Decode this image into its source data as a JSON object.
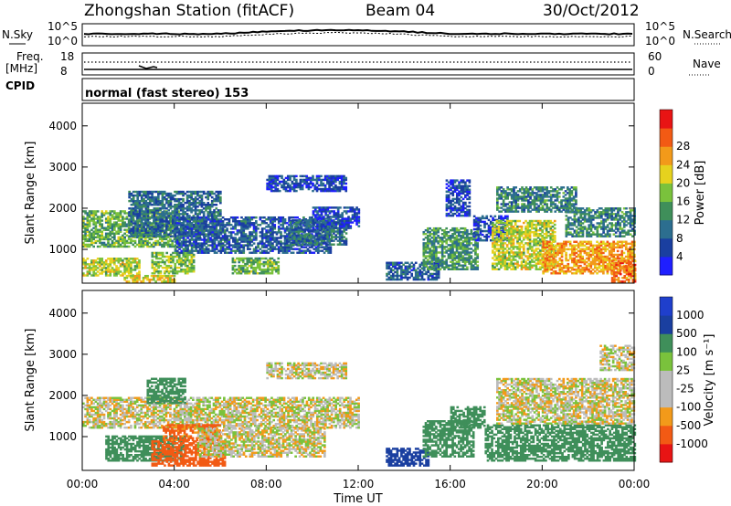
{
  "header": {
    "station": "Zhongshan Station (fitACF)",
    "beam": "Beam 04",
    "date": "30/Oct/2012",
    "mode": "normal (fast stereo) 153"
  },
  "status": {
    "nsky_label": "N.Sky",
    "nsearch_label": "N.Search",
    "noise_ticks": [
      "10^5",
      "10^0"
    ],
    "freq_label_1": "Freq.",
    "freq_label_2": "[MHz]",
    "freq_ticks": [
      "18",
      "8"
    ],
    "nave_label": "Nave",
    "nave_ticks": [
      "60",
      "0"
    ],
    "cpid_label": "CPID"
  },
  "colors": {
    "power": [
      "#1f1fff",
      "#1a3fa0",
      "#2c6e8f",
      "#3f8f5a",
      "#7ac23c",
      "#e6d21e",
      "#f29a1a",
      "#f25a14",
      "#e81414"
    ],
    "velocity": [
      "#e81414",
      "#f25a14",
      "#f29a1a",
      "#bcbcbc",
      "#bcbcbc",
      "#7ac23c",
      "#3f8f5a",
      "#1a3fa0",
      "#1f3fcc"
    ]
  },
  "chart_data": [
    {
      "type": "heatmap",
      "quantity": "Power",
      "xlabel": "Time UT",
      "ylabel": "Slant Range [km]",
      "x_ticks": [
        "00:00",
        "04:00",
        "08:00",
        "12:00",
        "16:00",
        "20:00",
        "00:00"
      ],
      "xlim_hours": [
        0,
        24
      ],
      "y_ticks": [
        1000,
        2000,
        3000,
        4000
      ],
      "ylim_km": [
        180,
        4550
      ],
      "colorbar_label": "Power [dB]",
      "colorbar_ticks": [
        "4",
        "8",
        "12",
        "16",
        "20",
        "24",
        "28"
      ],
      "colorbar_range": [
        0,
        32
      ],
      "echo_regions": [
        {
          "t": [
            0.0,
            4.2
          ],
          "r": [
            1050,
            1950
          ],
          "level": 16
        },
        {
          "t": [
            0.0,
            2.5
          ],
          "r": [
            350,
            800
          ],
          "level": 20
        },
        {
          "t": [
            1.8,
            4.0
          ],
          "r": [
            200,
            380
          ],
          "level": 22
        },
        {
          "t": [
            2.0,
            6.0
          ],
          "r": [
            1300,
            2400
          ],
          "level": 10
        },
        {
          "t": [
            3.0,
            4.8
          ],
          "r": [
            400,
            900
          ],
          "level": 18
        },
        {
          "t": [
            4.0,
            10.8
          ],
          "r": [
            900,
            1800
          ],
          "level": 8
        },
        {
          "t": [
            6.5,
            8.5
          ],
          "r": [
            400,
            800
          ],
          "level": 16
        },
        {
          "t": [
            8.0,
            11.5
          ],
          "r": [
            2400,
            2800
          ],
          "level": 6
        },
        {
          "t": [
            9.0,
            11.5
          ],
          "r": [
            1100,
            1700
          ],
          "level": 10
        },
        {
          "t": [
            10.0,
            12.0
          ],
          "r": [
            1500,
            2000
          ],
          "level": 6
        },
        {
          "t": [
            13.2,
            15.5
          ],
          "r": [
            250,
            700
          ],
          "level": 8
        },
        {
          "t": [
            14.8,
            17.2
          ],
          "r": [
            500,
            1500
          ],
          "level": 14
        },
        {
          "t": [
            15.8,
            16.8
          ],
          "r": [
            1800,
            2700
          ],
          "level": 6
        },
        {
          "t": [
            17.0,
            18.5
          ],
          "r": [
            1200,
            1800
          ],
          "level": 6
        },
        {
          "t": [
            17.8,
            20.5
          ],
          "r": [
            500,
            1700
          ],
          "level": 20
        },
        {
          "t": [
            18.0,
            21.5
          ],
          "r": [
            1900,
            2500
          ],
          "level": 12
        },
        {
          "t": [
            20.0,
            24.0
          ],
          "r": [
            400,
            1200
          ],
          "level": 26
        },
        {
          "t": [
            21.0,
            24.0
          ],
          "r": [
            1300,
            2000
          ],
          "level": 12
        },
        {
          "t": [
            23.0,
            24.0
          ],
          "r": [
            200,
            700
          ],
          "level": 28
        }
      ]
    },
    {
      "type": "heatmap",
      "quantity": "Velocity",
      "xlabel": "Time UT",
      "ylabel": "Slant Range [km]",
      "x_ticks": [
        "00:00",
        "04:00",
        "08:00",
        "12:00",
        "16:00",
        "20:00",
        "00:00"
      ],
      "xlim_hours": [
        0,
        24
      ],
      "y_ticks": [
        1000,
        2000,
        3000,
        4000
      ],
      "ylim_km": [
        180,
        4550
      ],
      "colorbar_label": "Velocity [m s⁻¹]",
      "colorbar_ticks": [
        "1000",
        "500",
        "100",
        "25",
        "-25",
        "-100",
        "-500",
        "-1000"
      ],
      "colorbar_range": [
        -1000,
        1000
      ],
      "echo_regions": [
        {
          "t": [
            0.0,
            12.0
          ],
          "r": [
            1200,
            1950
          ],
          "v": 0
        },
        {
          "t": [
            1.0,
            4.5
          ],
          "r": [
            400,
            1000
          ],
          "v": 200
        },
        {
          "t": [
            2.8,
            4.5
          ],
          "r": [
            1800,
            2400
          ],
          "v": 200
        },
        {
          "t": [
            3.0,
            6.2
          ],
          "r": [
            280,
            900
          ],
          "v": -300
        },
        {
          "t": [
            3.5,
            6.0
          ],
          "r": [
            900,
            1300
          ],
          "v": -150
        },
        {
          "t": [
            5.0,
            10.5
          ],
          "r": [
            500,
            1200
          ],
          "v": 0
        },
        {
          "t": [
            8.0,
            11.5
          ],
          "r": [
            2400,
            2800
          ],
          "v": 0
        },
        {
          "t": [
            13.2,
            15.0
          ],
          "r": [
            280,
            700
          ],
          "v": 700
        },
        {
          "t": [
            14.8,
            17.0
          ],
          "r": [
            500,
            1400
          ],
          "v": 350
        },
        {
          "t": [
            16.0,
            17.5
          ],
          "r": [
            1200,
            1700
          ],
          "v": 200
        },
        {
          "t": [
            17.5,
            24.0
          ],
          "r": [
            400,
            1300
          ],
          "v": 350
        },
        {
          "t": [
            18.0,
            24.0
          ],
          "r": [
            1300,
            2400
          ],
          "v": 0
        },
        {
          "t": [
            22.5,
            24.0
          ],
          "r": [
            2600,
            3200
          ],
          "v": 0
        }
      ]
    }
  ]
}
